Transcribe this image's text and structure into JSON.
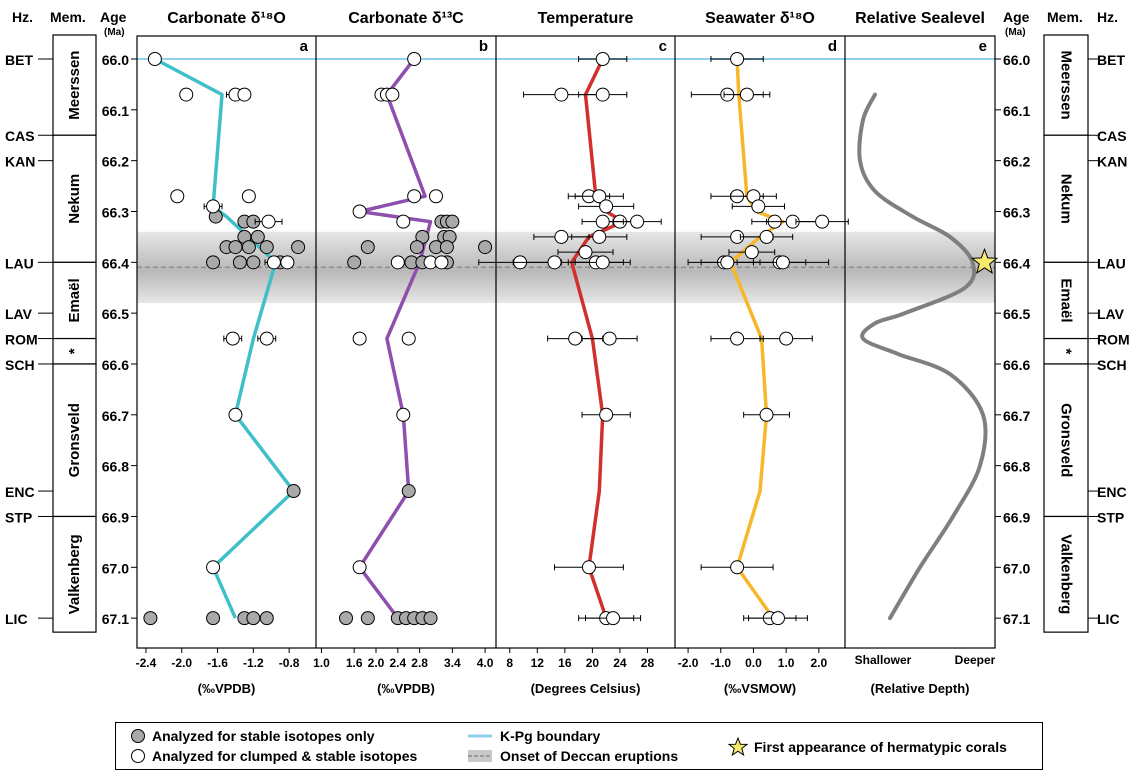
{
  "headers": {
    "hz": "Hz.",
    "mem": "Mem.",
    "age": "Age",
    "age_unit": "(Ma)"
  },
  "horizons": [
    {
      "name": "BET",
      "age": 66.0
    },
    {
      "name": "CAS",
      "age": 66.15
    },
    {
      "name": "KAN",
      "age": 66.2
    },
    {
      "name": "LAU",
      "age": 66.4
    },
    {
      "name": "LAV",
      "age": 66.5
    },
    {
      "name": "ROM",
      "age": 66.55
    },
    {
      "name": "SCH",
      "age": 66.6
    },
    {
      "name": "ENC",
      "age": 66.85
    },
    {
      "name": "STP",
      "age": 66.9
    },
    {
      "name": "LIC",
      "age": 67.1
    }
  ],
  "members": [
    {
      "name": "Meerssen",
      "top": 66.0,
      "bottom": 66.15
    },
    {
      "name": "Nekum",
      "top": 66.15,
      "bottom": 66.4
    },
    {
      "name": "Emaël",
      "top": 66.4,
      "bottom": 66.55
    },
    {
      "name": "*",
      "top": 66.55,
      "bottom": 66.6
    },
    {
      "name": "Gronsveld",
      "top": 66.6,
      "bottom": 66.9
    },
    {
      "name": "Valkenberg",
      "top": 66.9,
      "bottom": 67.1
    }
  ],
  "age_ticks": [
    "66.0",
    "66.1",
    "66.2",
    "66.3",
    "66.4",
    "66.5",
    "66.6",
    "66.7",
    "66.8",
    "66.9",
    "67.0",
    "67.1"
  ],
  "colors": {
    "d18O": "#3fc0c8",
    "d13C": "#8e4fae",
    "temp": "#d2302c",
    "sw": "#f6b82a",
    "kpg": "#8fd0f0",
    "sealevel": "#7f7f7f",
    "filled": "#a9a9a9",
    "star": "#f5ea6a"
  },
  "chart_data": [
    {
      "type": "scatter",
      "panel_letter": "a",
      "title": "Carbonate δ¹⁸O",
      "xlabel": "(‰VPDB)",
      "xlim": [
        -2.5,
        -0.5
      ],
      "xticks": [
        -2.4,
        -2.0,
        -1.6,
        -1.2,
        -0.8
      ],
      "xtick_labels": [
        "-2.4",
        "-2.0",
        "-1.6",
        "-1.2",
        "-0.8"
      ],
      "ylim": [
        67.15,
        65.95
      ],
      "line": {
        "age": [
          66.0,
          66.07,
          66.29,
          66.31,
          66.4,
          66.55,
          66.7,
          66.85,
          67.0,
          67.1
        ],
        "value": [
          -2.3,
          -1.55,
          -1.65,
          -1.5,
          -0.95,
          -1.2,
          -1.4,
          -0.75,
          -1.65,
          -1.4
        ]
      },
      "open_points": [
        {
          "age": 66.0,
          "value": -2.3
        },
        {
          "age": 66.07,
          "value": -1.95
        },
        {
          "age": 66.07,
          "value": -1.4,
          "err": 0.1
        },
        {
          "age": 66.07,
          "value": -1.3
        },
        {
          "age": 66.27,
          "value": -2.05
        },
        {
          "age": 66.27,
          "value": -1.25
        },
        {
          "age": 66.29,
          "value": -1.65,
          "err": 0.1
        },
        {
          "age": 66.32,
          "value": -1.03,
          "err": 0.15
        },
        {
          "age": 66.4,
          "value": -0.97,
          "err": 0.1
        },
        {
          "age": 66.4,
          "value": -0.82
        },
        {
          "age": 66.55,
          "value": -1.43,
          "err": 0.1
        },
        {
          "age": 66.55,
          "value": -1.05,
          "err": 0.1
        },
        {
          "age": 66.7,
          "value": -1.4
        },
        {
          "age": 67.0,
          "value": -1.65
        }
      ],
      "filled_points": [
        {
          "age": 66.31,
          "value": -1.62
        },
        {
          "age": 66.32,
          "value": -1.3
        },
        {
          "age": 66.32,
          "value": -1.2
        },
        {
          "age": 66.35,
          "value": -1.3
        },
        {
          "age": 66.35,
          "value": -1.15
        },
        {
          "age": 66.37,
          "value": -1.5
        },
        {
          "age": 66.37,
          "value": -1.4
        },
        {
          "age": 66.37,
          "value": -1.25
        },
        {
          "age": 66.37,
          "value": -1.05
        },
        {
          "age": 66.37,
          "value": -0.7
        },
        {
          "age": 66.4,
          "value": -1.65
        },
        {
          "age": 66.4,
          "value": -1.35
        },
        {
          "age": 66.4,
          "value": -1.2
        },
        {
          "age": 66.4,
          "value": -0.9
        },
        {
          "age": 66.85,
          "value": -0.75
        },
        {
          "age": 67.1,
          "value": -2.35
        },
        {
          "age": 67.1,
          "value": -1.65
        },
        {
          "age": 67.1,
          "value": -1.3
        },
        {
          "age": 67.1,
          "value": -1.2
        },
        {
          "age": 67.1,
          "value": -1.05
        }
      ]
    },
    {
      "type": "scatter",
      "panel_letter": "b",
      "title": "Carbonate δ¹³C",
      "xlabel": "(‰VPDB)",
      "xlim": [
        0.9,
        4.2
      ],
      "xticks": [
        1.0,
        1.6,
        2.0,
        2.4,
        2.8,
        3.4,
        4.0
      ],
      "xtick_labels": [
        "1.0",
        "1.6",
        "2.0",
        "2.4",
        "2.8",
        "3.4",
        "4.0"
      ],
      "ylim": [
        67.15,
        65.95
      ],
      "line": {
        "age": [
          66.0,
          66.07,
          66.27,
          66.3,
          66.32,
          66.4,
          66.55,
          66.7,
          66.85,
          67.0,
          67.1
        ],
        "value": [
          2.7,
          2.2,
          2.9,
          1.7,
          3.0,
          2.8,
          2.2,
          2.5,
          2.6,
          1.7,
          2.4
        ]
      },
      "open_points": [
        {
          "age": 66.0,
          "value": 2.7
        },
        {
          "age": 66.07,
          "value": 2.1
        },
        {
          "age": 66.07,
          "value": 2.2
        },
        {
          "age": 66.07,
          "value": 2.3
        },
        {
          "age": 66.27,
          "value": 2.7
        },
        {
          "age": 66.27,
          "value": 3.1
        },
        {
          "age": 66.3,
          "value": 1.7
        },
        {
          "age": 66.32,
          "value": 2.5
        },
        {
          "age": 66.4,
          "value": 2.4
        },
        {
          "age": 66.4,
          "value": 3.0
        },
        {
          "age": 66.4,
          "value": 3.2
        },
        {
          "age": 66.55,
          "value": 1.7
        },
        {
          "age": 66.55,
          "value": 2.6
        },
        {
          "age": 66.7,
          "value": 2.5
        },
        {
          "age": 67.0,
          "value": 1.7
        }
      ],
      "filled_points": [
        {
          "age": 66.32,
          "value": 3.2
        },
        {
          "age": 66.32,
          "value": 3.3
        },
        {
          "age": 66.32,
          "value": 3.4
        },
        {
          "age": 66.35,
          "value": 2.85
        },
        {
          "age": 66.35,
          "value": 3.25
        },
        {
          "age": 66.35,
          "value": 3.35
        },
        {
          "age": 66.37,
          "value": 1.85
        },
        {
          "age": 66.37,
          "value": 2.75
        },
        {
          "age": 66.37,
          "value": 3.1
        },
        {
          "age": 66.37,
          "value": 3.3
        },
        {
          "age": 66.37,
          "value": 4.0
        },
        {
          "age": 66.4,
          "value": 1.6
        },
        {
          "age": 66.4,
          "value": 2.65
        },
        {
          "age": 66.4,
          "value": 2.85
        },
        {
          "age": 66.4,
          "value": 3.3
        },
        {
          "age": 66.85,
          "value": 2.6
        },
        {
          "age": 67.1,
          "value": 1.45
        },
        {
          "age": 67.1,
          "value": 1.85
        },
        {
          "age": 67.1,
          "value": 2.4
        },
        {
          "age": 67.1,
          "value": 2.55
        },
        {
          "age": 67.1,
          "value": 2.7
        },
        {
          "age": 67.1,
          "value": 2.85
        },
        {
          "age": 67.1,
          "value": 3.0
        }
      ]
    },
    {
      "type": "scatter",
      "panel_letter": "c",
      "title": "Temperature",
      "xlabel": "(Degrees Celsius)",
      "xlim": [
        6,
        32
      ],
      "xticks": [
        8,
        12,
        16,
        20,
        24,
        28
      ],
      "xtick_labels": [
        "8",
        "12",
        "16",
        "20",
        "24",
        "28"
      ],
      "ylim": [
        67.15,
        65.95
      ],
      "line": {
        "age": [
          66.0,
          66.07,
          66.27,
          66.3,
          66.32,
          66.35,
          66.4,
          66.55,
          66.7,
          66.85,
          67.0,
          67.1
        ],
        "value": [
          21.5,
          19,
          20.5,
          22,
          24.5,
          19.5,
          17,
          20,
          21.5,
          21,
          19.5,
          22
        ]
      },
      "open_points": [
        {
          "age": 66.0,
          "value": 21.5,
          "err": 3.5
        },
        {
          "age": 66.07,
          "value": 15.5,
          "err": 5.5
        },
        {
          "age": 66.07,
          "value": 21.5,
          "err": 3.5
        },
        {
          "age": 66.27,
          "value": 19.5,
          "err": 3
        },
        {
          "age": 66.27,
          "value": 21,
          "err": 3.5
        },
        {
          "age": 66.29,
          "value": 22,
          "err": 4
        },
        {
          "age": 66.32,
          "value": 24,
          "err": 3
        },
        {
          "age": 66.32,
          "value": 26.5,
          "err": 3.5
        },
        {
          "age": 66.32,
          "value": 21.5,
          "err": 3
        },
        {
          "age": 66.35,
          "value": 15.5,
          "err": 4
        },
        {
          "age": 66.35,
          "value": 21,
          "err": 4
        },
        {
          "age": 66.38,
          "value": 19,
          "err": 4
        },
        {
          "age": 66.4,
          "value": 9.5,
          "err": 6
        },
        {
          "age": 66.4,
          "value": 14.5,
          "err": 6
        },
        {
          "age": 66.4,
          "value": 20.5,
          "err": 4
        },
        {
          "age": 66.4,
          "value": 21.5,
          "err": 4
        },
        {
          "age": 66.55,
          "value": 17.5,
          "err": 4
        },
        {
          "age": 66.55,
          "value": 22.5,
          "err": 4
        },
        {
          "age": 66.7,
          "value": 22,
          "err": 3.5
        },
        {
          "age": 67.0,
          "value": 19.5,
          "err": 5
        },
        {
          "age": 67.1,
          "value": 22,
          "err": 4
        },
        {
          "age": 67.1,
          "value": 23,
          "err": 4
        }
      ],
      "filled_points": []
    },
    {
      "type": "scatter",
      "panel_letter": "d",
      "title": "Seawater δ¹⁸O",
      "xlabel": "(‰VSMOW)",
      "xlim": [
        -2.4,
        2.8
      ],
      "xticks": [
        -2.0,
        -1.0,
        0.0,
        1.0,
        2.0
      ],
      "xtick_labels": [
        "-2.0",
        "-1.0",
        "0.0",
        "1.0",
        "2.0"
      ],
      "ylim": [
        67.15,
        65.95
      ],
      "line": {
        "age": [
          66.0,
          66.07,
          66.27,
          66.3,
          66.32,
          66.35,
          66.4,
          66.55,
          66.7,
          66.85,
          67.0,
          67.1
        ],
        "value": [
          -0.5,
          -0.45,
          -0.2,
          0.1,
          0.9,
          0.2,
          -0.7,
          0.25,
          0.4,
          0.2,
          -0.5,
          0.6
        ]
      },
      "open_points": [
        {
          "age": 66.0,
          "value": -0.5,
          "err": 0.8
        },
        {
          "age": 66.07,
          "value": -0.8,
          "err": 1.1
        },
        {
          "age": 66.07,
          "value": -0.2,
          "err": 0.7
        },
        {
          "age": 66.27,
          "value": -0.5,
          "err": 0.8
        },
        {
          "age": 66.27,
          "value": 0.0,
          "err": 0.7
        },
        {
          "age": 66.29,
          "value": 0.15,
          "err": 0.8
        },
        {
          "age": 66.32,
          "value": 0.65,
          "err": 0.7
        },
        {
          "age": 66.32,
          "value": 1.2,
          "err": 0.8
        },
        {
          "age": 66.32,
          "value": 2.1,
          "err": 0.8
        },
        {
          "age": 66.35,
          "value": -0.5,
          "err": 1.1
        },
        {
          "age": 66.35,
          "value": 0.4,
          "err": 0.8
        },
        {
          "age": 66.38,
          "value": -0.05,
          "err": 0.7
        },
        {
          "age": 66.4,
          "value": -0.9,
          "err": 1.1
        },
        {
          "age": 66.4,
          "value": -0.8,
          "err": 0.8
        },
        {
          "age": 66.4,
          "value": 0.8,
          "err": 0.8
        },
        {
          "age": 66.4,
          "value": 0.9,
          "err": 1.4
        },
        {
          "age": 66.55,
          "value": -0.5,
          "err": 0.8
        },
        {
          "age": 66.55,
          "value": 1.0,
          "err": 0.8
        },
        {
          "age": 66.7,
          "value": 0.4,
          "err": 0.7
        },
        {
          "age": 67.0,
          "value": -0.5,
          "err": 1.1
        },
        {
          "age": 67.1,
          "value": 0.5,
          "err": 0.8
        },
        {
          "age": 67.1,
          "value": 0.75,
          "err": 0.9
        }
      ],
      "filled_points": []
    },
    {
      "type": "line",
      "panel_letter": "e",
      "title": "Relative Sealevel",
      "xlabel": "(Relative Depth)",
      "x_end_labels": [
        "Shallower",
        "Deeper"
      ],
      "xlim": [
        0,
        1
      ],
      "ylim": [
        67.15,
        65.95
      ],
      "curve": {
        "age": [
          66.07,
          66.12,
          66.2,
          66.26,
          66.31,
          66.35,
          66.4,
          66.45,
          66.5,
          66.52,
          66.55,
          66.58,
          66.62,
          66.7,
          66.8,
          66.9,
          67.0,
          67.1
        ],
        "value": [
          0.2,
          0.12,
          0.1,
          0.2,
          0.45,
          0.7,
          0.85,
          0.8,
          0.4,
          0.2,
          0.12,
          0.35,
          0.7,
          0.92,
          0.9,
          0.72,
          0.5,
          0.3
        ]
      },
      "star": {
        "age": 66.4,
        "value": 0.93
      }
    }
  ],
  "kpg_boundary_age": 66.0,
  "deccan_band": {
    "top": 66.34,
    "bottom": 66.48,
    "onset": 66.41
  },
  "legend": {
    "filled": "Analyzed for stable isotopes only",
    "open": "Analyzed for clumped & stable isotopes",
    "kpg": "K-Pg boundary",
    "deccan": "Onset of Deccan eruptions",
    "star": "First appearance of hermatypic corals"
  }
}
